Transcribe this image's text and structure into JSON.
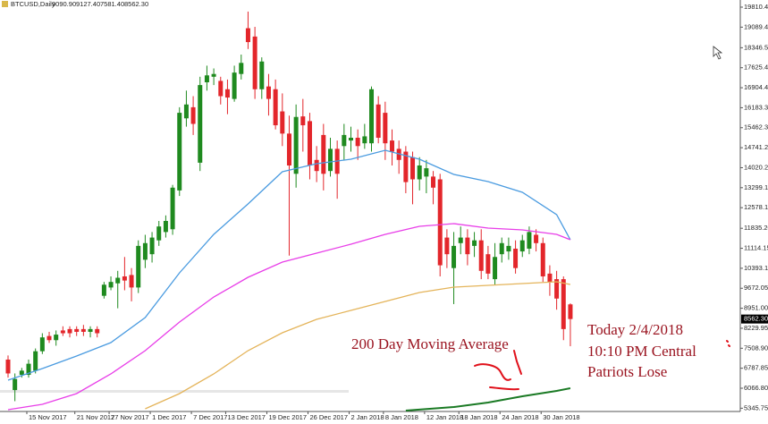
{
  "chart_data": {
    "type": "candlestick",
    "title": "BTCUSD,Daily",
    "header_ohlc": [
      "9090.90",
      "9127.40",
      "7581.40",
      "8562.30"
    ],
    "categories": [
      null,
      null,
      null,
      "15 Nov 2017",
      null,
      null,
      null,
      null,
      null,
      null,
      "21 Nov 2017",
      null,
      null,
      null,
      null,
      "27 Nov 2017",
      null,
      null,
      null,
      null,
      null,
      "1 Dec 2017",
      null,
      null,
      null,
      null,
      null,
      "7 Dec 2017",
      null,
      null,
      null,
      null,
      "13 Dec 2017",
      null,
      null,
      null,
      null,
      null,
      "19 Dec 2017",
      null,
      null,
      null,
      null,
      null,
      "26 Dec 2017",
      null,
      null,
      null,
      null,
      null,
      "2 Jan 2018",
      null,
      null,
      null,
      null,
      "8 Jan 2018",
      null,
      null,
      null,
      null,
      null,
      "12 Jan 2018",
      null,
      null,
      null,
      null,
      "18 Jan 2018",
      null,
      null,
      null,
      null,
      null,
      "24 Jan 2018",
      null,
      null,
      null,
      null,
      null,
      "30 Jan 2018",
      null,
      null,
      null,
      null
    ],
    "open": [
      7100,
      6000,
      6550,
      6550,
      6700,
      7400,
      7950,
      7800,
      8150,
      8200,
      8200,
      8200,
      8100,
      8200,
      9400,
      9700,
      9850,
      10100,
      10150,
      9700,
      10700,
      10900,
      11400,
      11700,
      11800,
      13200,
      15800,
      16200,
      14200,
      17100,
      17300,
      17150,
      16850,
      16500,
      17400,
      19050,
      18750,
      16850,
      16950,
      16850,
      16050,
      15250,
      13800,
      15870,
      15700,
      14300,
      15200,
      13900,
      14700,
      14800,
      15000,
      15100,
      14900,
      14900,
      16300,
      16000,
      15000,
      14700,
      14600,
      14400,
      13600,
      13700,
      13700,
      13600,
      11500,
      10400,
      11300,
      11500,
      11200,
      11400,
      10900,
      10000,
      10900,
      11000,
      11100,
      11000,
      11100,
      11600,
      11300,
      10200,
      10000,
      10000,
      9090.9
    ],
    "high": [
      7250,
      6600,
      6800,
      7100,
      7500,
      8050,
      8100,
      8150,
      8300,
      8300,
      8300,
      8350,
      8300,
      8300,
      9900,
      10100,
      10300,
      10800,
      10400,
      11400,
      11600,
      11700,
      12100,
      12300,
      13400,
      16200,
      16800,
      16600,
      17300,
      17700,
      17600,
      17300,
      17200,
      17700,
      18100,
      19650,
      19100,
      18000,
      17400,
      17200,
      16700,
      15900,
      16300,
      16500,
      16000,
      14800,
      15600,
      15100,
      15000,
      15600,
      15500,
      15400,
      15600,
      16950,
      16600,
      16400,
      15400,
      15000,
      14800,
      14600,
      14400,
      14300,
      13900,
      13800,
      11800,
      11700,
      11900,
      11800,
      11700,
      11800,
      11200,
      11300,
      11500,
      11500,
      11400,
      11600,
      11900,
      11800,
      11500,
      10500,
      10300,
      10100,
      9127.4
    ],
    "low": [
      6450,
      5600,
      6450,
      6450,
      6600,
      7300,
      7700,
      7600,
      7950,
      7900,
      7950,
      7950,
      7900,
      7900,
      9300,
      9600,
      8950,
      9600,
      9200,
      9500,
      10400,
      10600,
      11200,
      11500,
      11600,
      13000,
      15500,
      15200,
      13900,
      16800,
      17000,
      16300,
      15950,
      16400,
      17200,
      18300,
      16500,
      16500,
      15900,
      15400,
      14800,
      10850,
      13300,
      14600,
      13600,
      13500,
      13200,
      13700,
      12900,
      14300,
      14600,
      14300,
      14700,
      14600,
      14900,
      14300,
      14100,
      13800,
      13100,
      12700,
      13200,
      13100,
      12700,
      10100,
      10400,
      9100,
      10900,
      10500,
      10800,
      10000,
      10000,
      9800,
      10600,
      10700,
      10200,
      10800,
      10900,
      11000,
      9900,
      9400,
      8900,
      7800,
      7581.4
    ],
    "close": [
      6600,
      6400,
      6700,
      6950,
      7400,
      7900,
      7800,
      8000,
      8050,
      8050,
      8100,
      8100,
      8200,
      8050,
      9800,
      9900,
      10050,
      9950,
      9700,
      11200,
      11300,
      11500,
      11900,
      12100,
      13300,
      16000,
      16300,
      15600,
      17000,
      17350,
      17400,
      16600,
      16550,
      17450,
      17800,
      18550,
      16850,
      17850,
      16500,
      15550,
      15250,
      14100,
      15850,
      15550,
      14100,
      13900,
      13800,
      14700,
      13800,
      15200,
      15100,
      14800,
      15150,
      16850,
      15100,
      14900,
      14600,
      14300,
      13500,
      13600,
      14100,
      14000,
      13300,
      10500,
      10900,
      11200,
      11500,
      10900,
      11400,
      10300,
      10200,
      10800,
      11300,
      11200,
      10400,
      11400,
      11700,
      11300,
      10100,
      9900,
      9300,
      8200,
      8562.3
    ],
    "up_color": "#1f8a1f",
    "down_color": "#e3262b",
    "moving_averages": [
      {
        "color": "#4a9be0",
        "x": [
          0,
          5,
          10,
          15,
          20,
          25,
          30,
          35,
          40,
          45,
          50,
          55,
          60,
          65,
          70,
          75,
          80,
          82
        ],
        "values": [
          6358,
          6777,
          7229,
          7712,
          8616,
          10229,
          11616,
          12713,
          13874,
          14164,
          14326,
          14648,
          14326,
          13777,
          13519,
          13132,
          12326,
          11422
        ]
      },
      {
        "color": "#e83ee8",
        "x": [
          0,
          5,
          10,
          15,
          20,
          25,
          30,
          35,
          40,
          45,
          50,
          55,
          60,
          65,
          70,
          75,
          80,
          82
        ],
        "values": [
          5293,
          5487,
          5874,
          6583,
          7422,
          8454,
          9357,
          10067,
          10616,
          10939,
          11261,
          11616,
          11906,
          12003,
          11842,
          11777,
          11616,
          11422
        ]
      },
      {
        "color": "#e4b45a",
        "x": [
          20,
          25,
          30,
          35,
          40,
          45,
          50,
          55,
          60,
          65,
          70,
          75,
          80,
          82
        ],
        "values": [
          5325,
          5874,
          6583,
          7422,
          8067,
          8551,
          8874,
          9196,
          9519,
          9713,
          9777,
          9842,
          9906,
          9810
        ]
      },
      {
        "color": "#1a7a24",
        "x": [
          58,
          65,
          70,
          75,
          80,
          82
        ],
        "values": [
          5261,
          5390,
          5551,
          5777,
          5971,
          6067
        ]
      }
    ],
    "last_price": {
      "value": 8562.3,
      "label": "8562.30"
    },
    "ylim": [
      5228,
      20068
    ],
    "yticks": [
      19810.45,
      {
        "value": 19089.4,
        "label": "19089.40"
      },
      18346.55,
      17625.45,
      {
        "value": 16904.4,
        "label": "16904.40"
      },
      16183.35,
      {
        "value": 15462.3,
        "label": "15462.30"
      },
      14741.25,
      {
        "value": 14020.2,
        "label": "14020.20"
      },
      13299.15,
      {
        "value": 12578.1,
        "label": "12578.10"
      },
      {
        "value": 11835.2,
        "label": "11835.20"
      },
      11114.15,
      {
        "value": 10393.1,
        "label": "10393.10"
      },
      9672.05,
      {
        "value": 8951,
        "label": "8951.00"
      },
      8229.95,
      {
        "value": 7508.9,
        "label": "7508.90"
      },
      6787.85,
      {
        "value": 6066.8,
        "label": "6066.80"
      },
      5345.75
    ],
    "annotations": [
      "200 Day Moving Average",
      "Today 2/4/2018",
      "10:10 PM Central",
      "Patriots Lose"
    ]
  }
}
